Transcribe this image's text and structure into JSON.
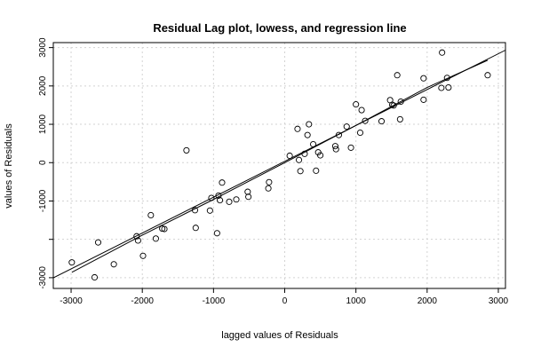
{
  "chart_data": {
    "type": "scatter",
    "title": "Residual Lag plot, lowess, and regression line",
    "xlabel": "lagged values of Residuals",
    "ylabel": "values of Residuals",
    "xlim": [
      -3250,
      3100
    ],
    "ylim": [
      -3280,
      3130
    ],
    "xticks": [
      -3000,
      -2000,
      -1000,
      0,
      1000,
      2000,
      3000
    ],
    "yticks": [
      -3000,
      -2000,
      -1000,
      0,
      1000,
      2000,
      3000
    ],
    "ytick_labels": [
      "-3000",
      "",
      "-1000",
      "0",
      "1000",
      "2000",
      "3000"
    ],
    "grid": true,
    "points": [
      [
        -2990,
        -2600
      ],
      [
        -2670,
        -2990
      ],
      [
        -2620,
        -2080
      ],
      [
        -2400,
        -2650
      ],
      [
        -2080,
        -1920
      ],
      [
        -2060,
        -2030
      ],
      [
        -1990,
        -2430
      ],
      [
        -1880,
        -1370
      ],
      [
        -1810,
        -1980
      ],
      [
        -1720,
        -1720
      ],
      [
        -1690,
        -1730
      ],
      [
        -1380,
        320
      ],
      [
        -1260,
        -1240
      ],
      [
        -1250,
        -1700
      ],
      [
        -1050,
        -1250
      ],
      [
        -1030,
        -920
      ],
      [
        -950,
        -1840
      ],
      [
        -930,
        -860
      ],
      [
        -910,
        -980
      ],
      [
        -880,
        -520
      ],
      [
        -780,
        -1020
      ],
      [
        -680,
        -960
      ],
      [
        -520,
        -760
      ],
      [
        -510,
        -890
      ],
      [
        -230,
        -670
      ],
      [
        -220,
        -510
      ],
      [
        70,
        180
      ],
      [
        180,
        880
      ],
      [
        200,
        70
      ],
      [
        220,
        -220
      ],
      [
        280,
        230
      ],
      [
        320,
        720
      ],
      [
        340,
        1000
      ],
      [
        400,
        480
      ],
      [
        440,
        -210
      ],
      [
        470,
        270
      ],
      [
        500,
        190
      ],
      [
        710,
        430
      ],
      [
        720,
        350
      ],
      [
        760,
        720
      ],
      [
        870,
        940
      ],
      [
        930,
        390
      ],
      [
        1000,
        1520
      ],
      [
        1060,
        780
      ],
      [
        1080,
        1370
      ],
      [
        1130,
        1090
      ],
      [
        1360,
        1080
      ],
      [
        1480,
        1630
      ],
      [
        1510,
        1510
      ],
      [
        1530,
        1490
      ],
      [
        1580,
        2280
      ],
      [
        1620,
        1130
      ],
      [
        1630,
        1590
      ],
      [
        1950,
        2200
      ],
      [
        1950,
        1640
      ],
      [
        2200,
        1950
      ],
      [
        2210,
        2870
      ],
      [
        2280,
        2210
      ],
      [
        2300,
        1960
      ],
      [
        2850,
        2280
      ]
    ],
    "regression_line": {
      "x": [
        -3300,
        3150
      ],
      "y": [
        -3050,
        2980
      ]
    },
    "lowess_line": {
      "x": [
        -2990,
        -2000,
        -1000,
        0,
        1000,
        2000,
        2850
      ],
      "y": [
        -2860,
        -1890,
        -960,
        0,
        970,
        1960,
        2670
      ]
    }
  }
}
